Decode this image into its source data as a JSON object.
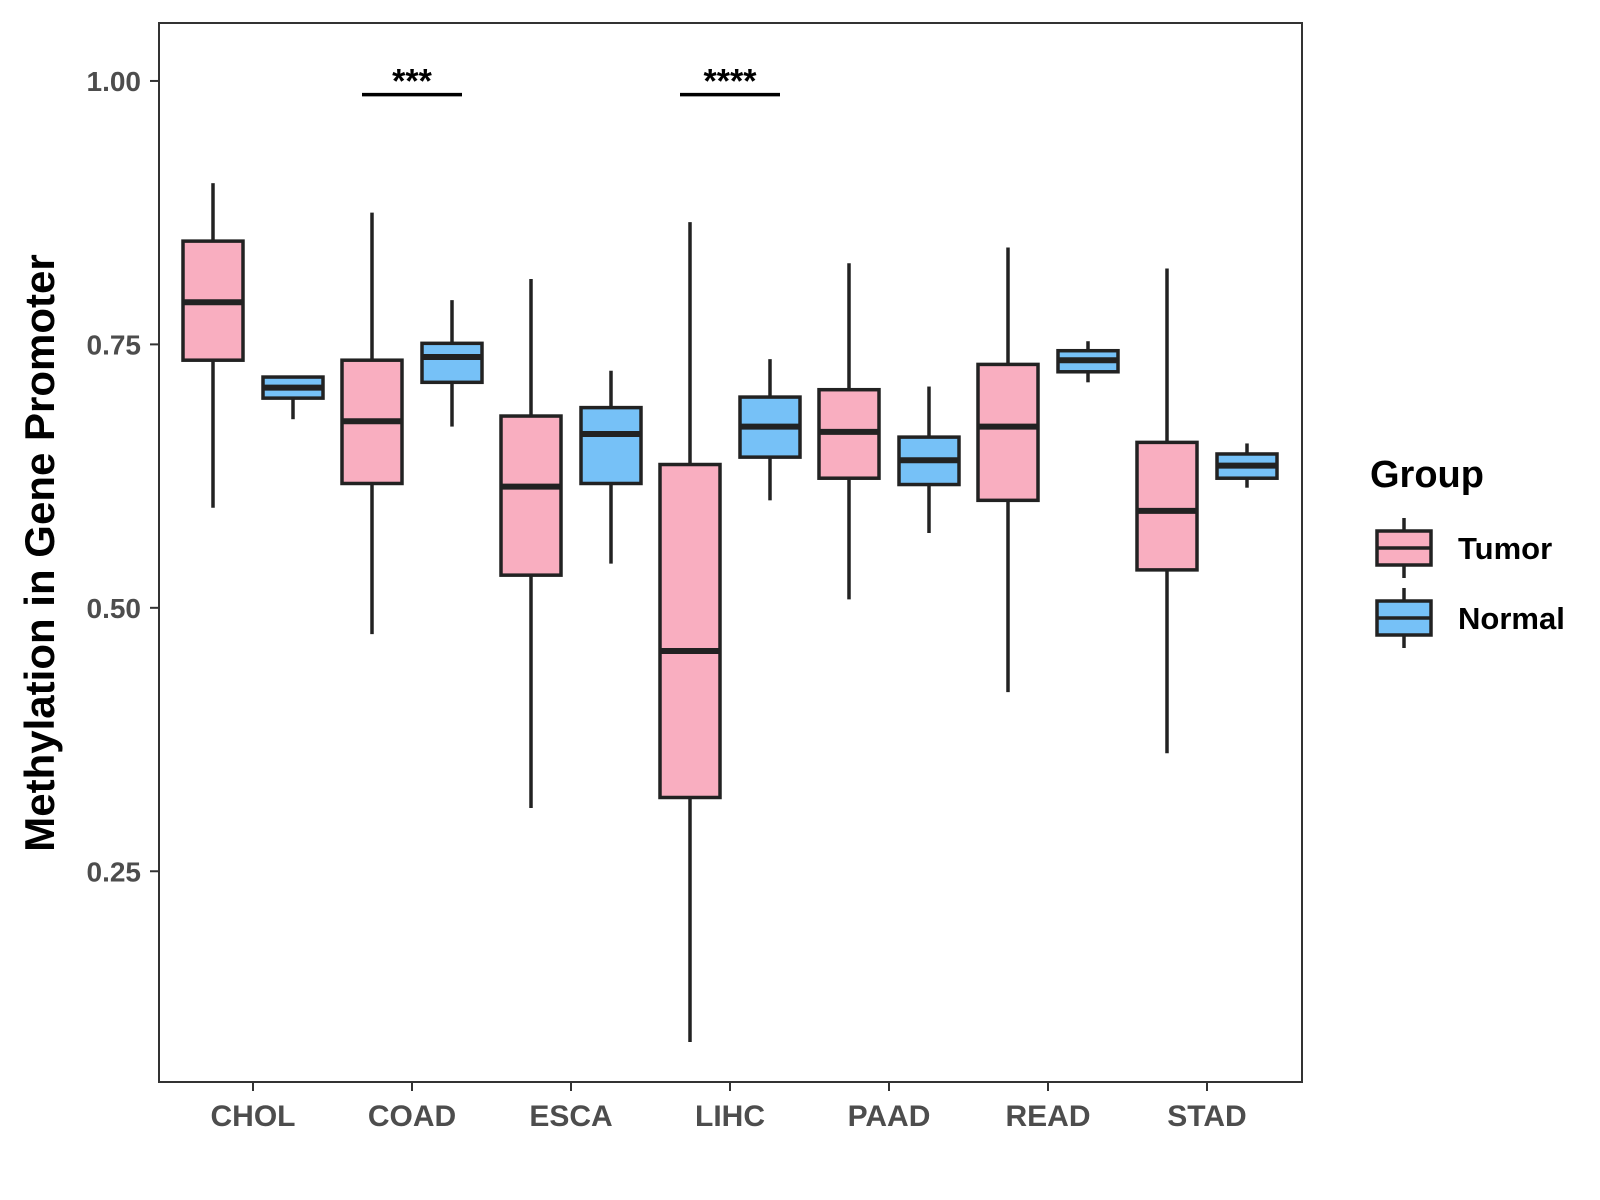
{
  "chart_data": {
    "type": "boxplot",
    "title": "",
    "xlabel": "",
    "ylabel": "Methylation in Gene Promoter",
    "ylim": [
      0.05,
      1.055
    ],
    "y_ticks": [
      0.25,
      0.5,
      0.75,
      1.0
    ],
    "y_tick_labels": [
      "0.25",
      "0.50",
      "0.75",
      "1.00"
    ],
    "categories": [
      "CHOL",
      "COAD",
      "ESCA",
      "LIHC",
      "PAAD",
      "READ",
      "STAD"
    ],
    "legend": {
      "title": "Group",
      "position": "right",
      "items": [
        {
          "name": "Tumor",
          "color": "#F9AEC0"
        },
        {
          "name": "Normal",
          "color": "#76C1F7"
        }
      ]
    },
    "series": [
      {
        "name": "Tumor",
        "color": "#F9AEC0",
        "boxes": [
          {
            "category": "CHOL",
            "min": 0.595,
            "q1": 0.735,
            "median": 0.79,
            "q3": 0.848,
            "max": 0.903
          },
          {
            "category": "COAD",
            "min": 0.475,
            "q1": 0.618,
            "median": 0.677,
            "q3": 0.735,
            "max": 0.875
          },
          {
            "category": "ESCA",
            "min": 0.31,
            "q1": 0.531,
            "median": 0.615,
            "q3": 0.682,
            "max": 0.812
          },
          {
            "category": "LIHC",
            "min": 0.088,
            "q1": 0.32,
            "median": 0.459,
            "q3": 0.636,
            "max": 0.866
          },
          {
            "category": "PAAD",
            "min": 0.508,
            "q1": 0.623,
            "median": 0.667,
            "q3": 0.707,
            "max": 0.827
          },
          {
            "category": "READ",
            "min": 0.42,
            "q1": 0.602,
            "median": 0.672,
            "q3": 0.731,
            "max": 0.842
          },
          {
            "category": "STAD",
            "min": 0.362,
            "q1": 0.536,
            "median": 0.592,
            "q3": 0.657,
            "max": 0.822
          }
        ]
      },
      {
        "name": "Normal",
        "color": "#76C1F7",
        "boxes": [
          {
            "category": "CHOL",
            "min": 0.679,
            "q1": 0.699,
            "median": 0.709,
            "q3": 0.719,
            "max": 0.719
          },
          {
            "category": "COAD",
            "min": 0.672,
            "q1": 0.714,
            "median": 0.738,
            "q3": 0.751,
            "max": 0.792
          },
          {
            "category": "ESCA",
            "min": 0.542,
            "q1": 0.618,
            "median": 0.665,
            "q3": 0.69,
            "max": 0.725
          },
          {
            "category": "LIHC",
            "min": 0.602,
            "q1": 0.643,
            "median": 0.672,
            "q3": 0.7,
            "max": 0.736
          },
          {
            "category": "PAAD",
            "min": 0.571,
            "q1": 0.617,
            "median": 0.64,
            "q3": 0.662,
            "max": 0.71
          },
          {
            "category": "READ",
            "min": 0.714,
            "q1": 0.724,
            "median": 0.735,
            "q3": 0.744,
            "max": 0.753
          },
          {
            "category": "STAD",
            "min": 0.614,
            "q1": 0.623,
            "median": 0.635,
            "q3": 0.646,
            "max": 0.656
          }
        ]
      }
    ],
    "annotations": [
      {
        "category": "COAD",
        "label": "***",
        "y": 0.987
      },
      {
        "category": "LIHC",
        "label": "****",
        "y": 0.987
      }
    ]
  }
}
